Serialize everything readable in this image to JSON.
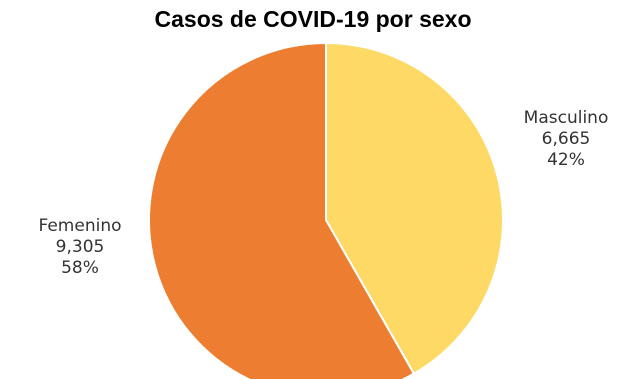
{
  "chart_data": {
    "type": "pie",
    "title": "Casos de COVID-19 por sexo",
    "slices": [
      {
        "label": "Masculino",
        "value": 6665,
        "value_label": "6,665",
        "percent_label": "42%",
        "color": "#FFD966"
      },
      {
        "label": "Femenino",
        "value": 9305,
        "value_label": "9,305",
        "percent_label": "58%",
        "color": "#ED7D31"
      }
    ],
    "start_angle": "12 o'clock",
    "direction": "clockwise",
    "slice_border_color": "#FFFFFF",
    "legend": "none",
    "label_placement": "outside"
  }
}
